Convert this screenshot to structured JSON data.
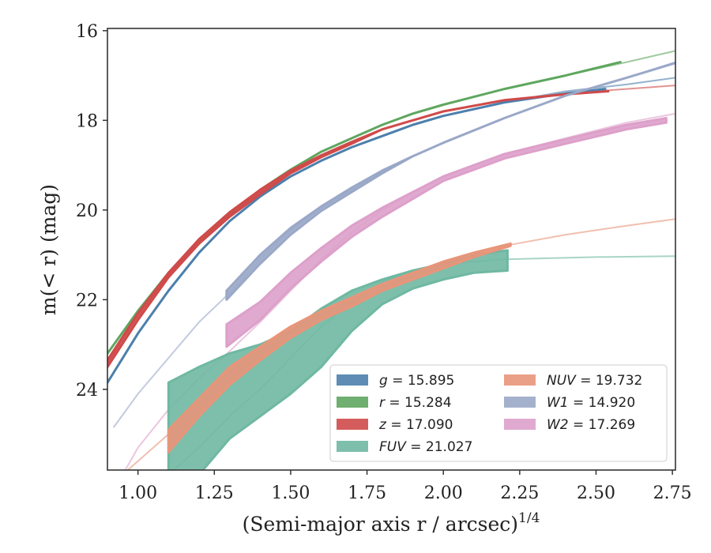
{
  "chart_data": {
    "type": "line",
    "xlabel": "(Semi-major axis r / arcsec)",
    "xlabel_exp": "1/4",
    "ylabel": "m(< r) (mag)",
    "xlim": [
      0.9,
      2.76
    ],
    "ylim": [
      25.8,
      15.95
    ],
    "y_inverted": true,
    "grid": false,
    "legend_position": "lower-right",
    "xticks": [
      "1.00",
      "1.25",
      "1.50",
      "1.75",
      "2.00",
      "2.25",
      "2.50",
      "2.75"
    ],
    "yticks": [
      "16",
      "18",
      "20",
      "22",
      "24"
    ],
    "series": [
      {
        "name": "g = 15.895",
        "sym": "g",
        "value": "15.895",
        "color": "#4c7fac",
        "model": [
          [
            0.9,
            23.85
          ],
          [
            1.0,
            22.75
          ],
          [
            1.1,
            21.8
          ],
          [
            1.2,
            20.95
          ],
          [
            1.3,
            20.25
          ],
          [
            1.4,
            19.7
          ],
          [
            1.5,
            19.25
          ],
          [
            1.6,
            18.9
          ],
          [
            1.7,
            18.6
          ],
          [
            1.8,
            18.35
          ],
          [
            1.9,
            18.1
          ],
          [
            2.0,
            17.9
          ],
          [
            2.2,
            17.6
          ],
          [
            2.4,
            17.35
          ],
          [
            2.6,
            17.2
          ],
          [
            2.76,
            17.05
          ]
        ],
        "band": [
          [
            0.9,
            23.85,
            23.85
          ],
          [
            1.0,
            22.75,
            22.75
          ],
          [
            1.1,
            21.8,
            21.8
          ],
          [
            1.2,
            20.95,
            20.95
          ],
          [
            1.3,
            20.25,
            20.25
          ],
          [
            1.4,
            19.7,
            19.7
          ],
          [
            1.5,
            19.25,
            19.25
          ],
          [
            1.6,
            18.9,
            18.9
          ],
          [
            1.7,
            18.6,
            18.6
          ],
          [
            1.8,
            18.35,
            18.35
          ],
          [
            1.9,
            18.1,
            18.1
          ],
          [
            2.0,
            17.9,
            17.9
          ],
          [
            2.2,
            17.6,
            17.6
          ],
          [
            2.4,
            17.4,
            17.4
          ],
          [
            2.53,
            17.3,
            17.3
          ]
        ]
      },
      {
        "name": "r = 15.284",
        "sym": "r",
        "value": "15.284",
        "color": "#5fa65f",
        "model": [
          [
            0.9,
            23.2
          ],
          [
            1.0,
            22.25
          ],
          [
            1.1,
            21.4
          ],
          [
            1.2,
            20.7
          ],
          [
            1.3,
            20.1
          ],
          [
            1.4,
            19.55
          ],
          [
            1.5,
            19.1
          ],
          [
            1.6,
            18.7
          ],
          [
            1.7,
            18.4
          ],
          [
            1.8,
            18.1
          ],
          [
            1.9,
            17.85
          ],
          [
            2.0,
            17.65
          ],
          [
            2.2,
            17.3
          ],
          [
            2.4,
            17.0
          ],
          [
            2.6,
            16.7
          ],
          [
            2.76,
            16.45
          ]
        ],
        "band": [
          [
            0.9,
            23.2,
            23.2
          ],
          [
            1.0,
            22.25,
            22.25
          ],
          [
            1.1,
            21.4,
            21.4
          ],
          [
            1.2,
            20.7,
            20.7
          ],
          [
            1.3,
            20.1,
            20.1
          ],
          [
            1.4,
            19.55,
            19.55
          ],
          [
            1.5,
            19.1,
            19.1
          ],
          [
            1.6,
            18.7,
            18.7
          ],
          [
            1.7,
            18.4,
            18.4
          ],
          [
            1.8,
            18.1,
            18.1
          ],
          [
            1.9,
            17.85,
            17.85
          ],
          [
            2.0,
            17.65,
            17.65
          ],
          [
            2.2,
            17.3,
            17.3
          ],
          [
            2.4,
            17.0,
            17.0
          ],
          [
            2.58,
            16.7,
            16.7
          ]
        ]
      },
      {
        "name": "z = 17.090",
        "sym": "z",
        "value": "17.090",
        "color": "#d04a4a",
        "model": [
          [
            0.9,
            23.4
          ],
          [
            1.0,
            22.35
          ],
          [
            1.1,
            21.45
          ],
          [
            1.2,
            20.7
          ],
          [
            1.3,
            20.1
          ],
          [
            1.4,
            19.6
          ],
          [
            1.5,
            19.15
          ],
          [
            1.6,
            18.8
          ],
          [
            1.7,
            18.5
          ],
          [
            1.8,
            18.2
          ],
          [
            1.9,
            18.0
          ],
          [
            2.0,
            17.8
          ],
          [
            2.2,
            17.55
          ],
          [
            2.4,
            17.4
          ],
          [
            2.6,
            17.3
          ],
          [
            2.76,
            17.22
          ]
        ],
        "band": [
          [
            0.9,
            23.35,
            23.5
          ],
          [
            1.0,
            22.3,
            22.45
          ],
          [
            1.1,
            21.4,
            21.5
          ],
          [
            1.2,
            20.65,
            20.75
          ],
          [
            1.3,
            20.05,
            20.15
          ],
          [
            1.4,
            19.55,
            19.65
          ],
          [
            1.5,
            19.12,
            19.18
          ],
          [
            1.6,
            18.78,
            18.82
          ],
          [
            1.7,
            18.48,
            18.52
          ],
          [
            1.8,
            18.2,
            18.2
          ],
          [
            1.9,
            18.0,
            18.0
          ],
          [
            2.0,
            17.8,
            17.8
          ],
          [
            2.2,
            17.55,
            17.55
          ],
          [
            2.4,
            17.42,
            17.42
          ],
          [
            2.54,
            17.35,
            17.35
          ]
        ]
      },
      {
        "name": "FUV = 21.027",
        "sym": "FUV",
        "value": "21.027",
        "color": "#6fb8a2",
        "model": [
          [
            1.1,
            25.9
          ],
          [
            1.2,
            25.3
          ],
          [
            1.3,
            24.6
          ],
          [
            1.4,
            24.0
          ],
          [
            1.5,
            23.3
          ],
          [
            1.6,
            22.6
          ],
          [
            1.7,
            22.05
          ],
          [
            1.8,
            21.6
          ],
          [
            1.9,
            21.35
          ],
          [
            2.0,
            21.2
          ],
          [
            2.2,
            21.1
          ],
          [
            2.5,
            21.05
          ],
          [
            2.76,
            21.03
          ]
        ],
        "band": [
          [
            1.1,
            23.85,
            25.9
          ],
          [
            1.2,
            23.5,
            25.9
          ],
          [
            1.3,
            23.2,
            25.1
          ],
          [
            1.4,
            23.0,
            24.6
          ],
          [
            1.5,
            22.7,
            24.1
          ],
          [
            1.6,
            22.2,
            23.5
          ],
          [
            1.7,
            21.8,
            22.7
          ],
          [
            1.8,
            21.55,
            22.1
          ],
          [
            1.9,
            21.35,
            21.75
          ],
          [
            2.0,
            21.2,
            21.55
          ],
          [
            2.1,
            21.0,
            21.4
          ],
          [
            2.21,
            20.9,
            21.35
          ]
        ]
      },
      {
        "name": "NUV = 19.732",
        "sym": "NUV",
        "value": "19.732",
        "color": "#e8957a",
        "model": [
          [
            0.95,
            25.9
          ],
          [
            1.0,
            25.6
          ],
          [
            1.1,
            25.0
          ],
          [
            1.2,
            24.2
          ],
          [
            1.3,
            23.6
          ],
          [
            1.4,
            23.1
          ],
          [
            1.5,
            22.65
          ],
          [
            1.6,
            22.25
          ],
          [
            1.7,
            21.95
          ],
          [
            1.8,
            21.65
          ],
          [
            1.9,
            21.4
          ],
          [
            2.0,
            21.15
          ],
          [
            2.2,
            20.8
          ],
          [
            2.4,
            20.55
          ],
          [
            2.6,
            20.35
          ],
          [
            2.76,
            20.2
          ]
        ],
        "band": [
          [
            1.1,
            24.9,
            25.4
          ],
          [
            1.2,
            24.2,
            24.6
          ],
          [
            1.3,
            23.5,
            23.9
          ],
          [
            1.4,
            23.05,
            23.35
          ],
          [
            1.5,
            22.6,
            22.85
          ],
          [
            1.6,
            22.25,
            22.45
          ],
          [
            1.7,
            21.95,
            22.15
          ],
          [
            1.8,
            21.65,
            21.8
          ],
          [
            1.9,
            21.4,
            21.55
          ],
          [
            2.0,
            21.15,
            21.3
          ],
          [
            2.1,
            20.95,
            21.05
          ],
          [
            2.22,
            20.75,
            20.8
          ]
        ]
      },
      {
        "name": "W1 = 14.920",
        "sym": "W1",
        "value": "14.920",
        "color": "#9aa8c8",
        "model": [
          [
            0.92,
            24.85
          ],
          [
            1.0,
            24.1
          ],
          [
            1.1,
            23.3
          ],
          [
            1.2,
            22.5
          ],
          [
            1.3,
            21.85
          ],
          [
            1.4,
            21.1
          ],
          [
            1.5,
            20.45
          ],
          [
            1.6,
            19.95
          ],
          [
            1.7,
            19.55
          ],
          [
            1.8,
            19.15
          ],
          [
            1.9,
            18.8
          ],
          [
            2.0,
            18.5
          ],
          [
            2.2,
            17.95
          ],
          [
            2.4,
            17.45
          ],
          [
            2.6,
            17.05
          ],
          [
            2.76,
            16.7
          ]
        ],
        "band": [
          [
            1.29,
            21.8,
            22.0
          ],
          [
            1.4,
            21.0,
            21.2
          ],
          [
            1.5,
            20.4,
            20.55
          ],
          [
            1.6,
            19.92,
            20.02
          ],
          [
            1.7,
            19.5,
            19.6
          ],
          [
            1.8,
            19.12,
            19.18
          ],
          [
            1.9,
            18.8,
            18.8
          ],
          [
            2.0,
            18.5,
            18.5
          ],
          [
            2.2,
            17.95,
            17.95
          ],
          [
            2.4,
            17.45,
            17.45
          ],
          [
            2.6,
            17.05,
            17.05
          ],
          [
            2.76,
            16.72,
            16.72
          ]
        ]
      },
      {
        "name": "W2 = 17.269",
        "sym": "W2",
        "value": "17.269",
        "color": "#dda0ca",
        "model": [
          [
            0.95,
            25.9
          ],
          [
            1.0,
            25.3
          ],
          [
            1.1,
            24.45
          ],
          [
            1.2,
            23.75
          ],
          [
            1.3,
            23.15
          ],
          [
            1.4,
            22.5
          ],
          [
            1.5,
            21.8
          ],
          [
            1.6,
            21.1
          ],
          [
            1.7,
            20.5
          ],
          [
            1.8,
            20.0
          ],
          [
            1.9,
            19.6
          ],
          [
            2.0,
            19.25
          ],
          [
            2.2,
            18.75
          ],
          [
            2.4,
            18.4
          ],
          [
            2.6,
            18.05
          ],
          [
            2.76,
            17.85
          ]
        ],
        "band": [
          [
            1.29,
            22.55,
            23.05
          ],
          [
            1.4,
            22.05,
            22.45
          ],
          [
            1.5,
            21.4,
            21.75
          ],
          [
            1.6,
            20.85,
            21.15
          ],
          [
            1.7,
            20.35,
            20.6
          ],
          [
            1.8,
            19.95,
            20.15
          ],
          [
            1.9,
            19.6,
            19.75
          ],
          [
            2.0,
            19.25,
            19.35
          ],
          [
            2.2,
            18.75,
            18.85
          ],
          [
            2.4,
            18.42,
            18.52
          ],
          [
            2.6,
            18.1,
            18.2
          ],
          [
            2.73,
            17.95,
            18.05
          ]
        ]
      }
    ]
  }
}
